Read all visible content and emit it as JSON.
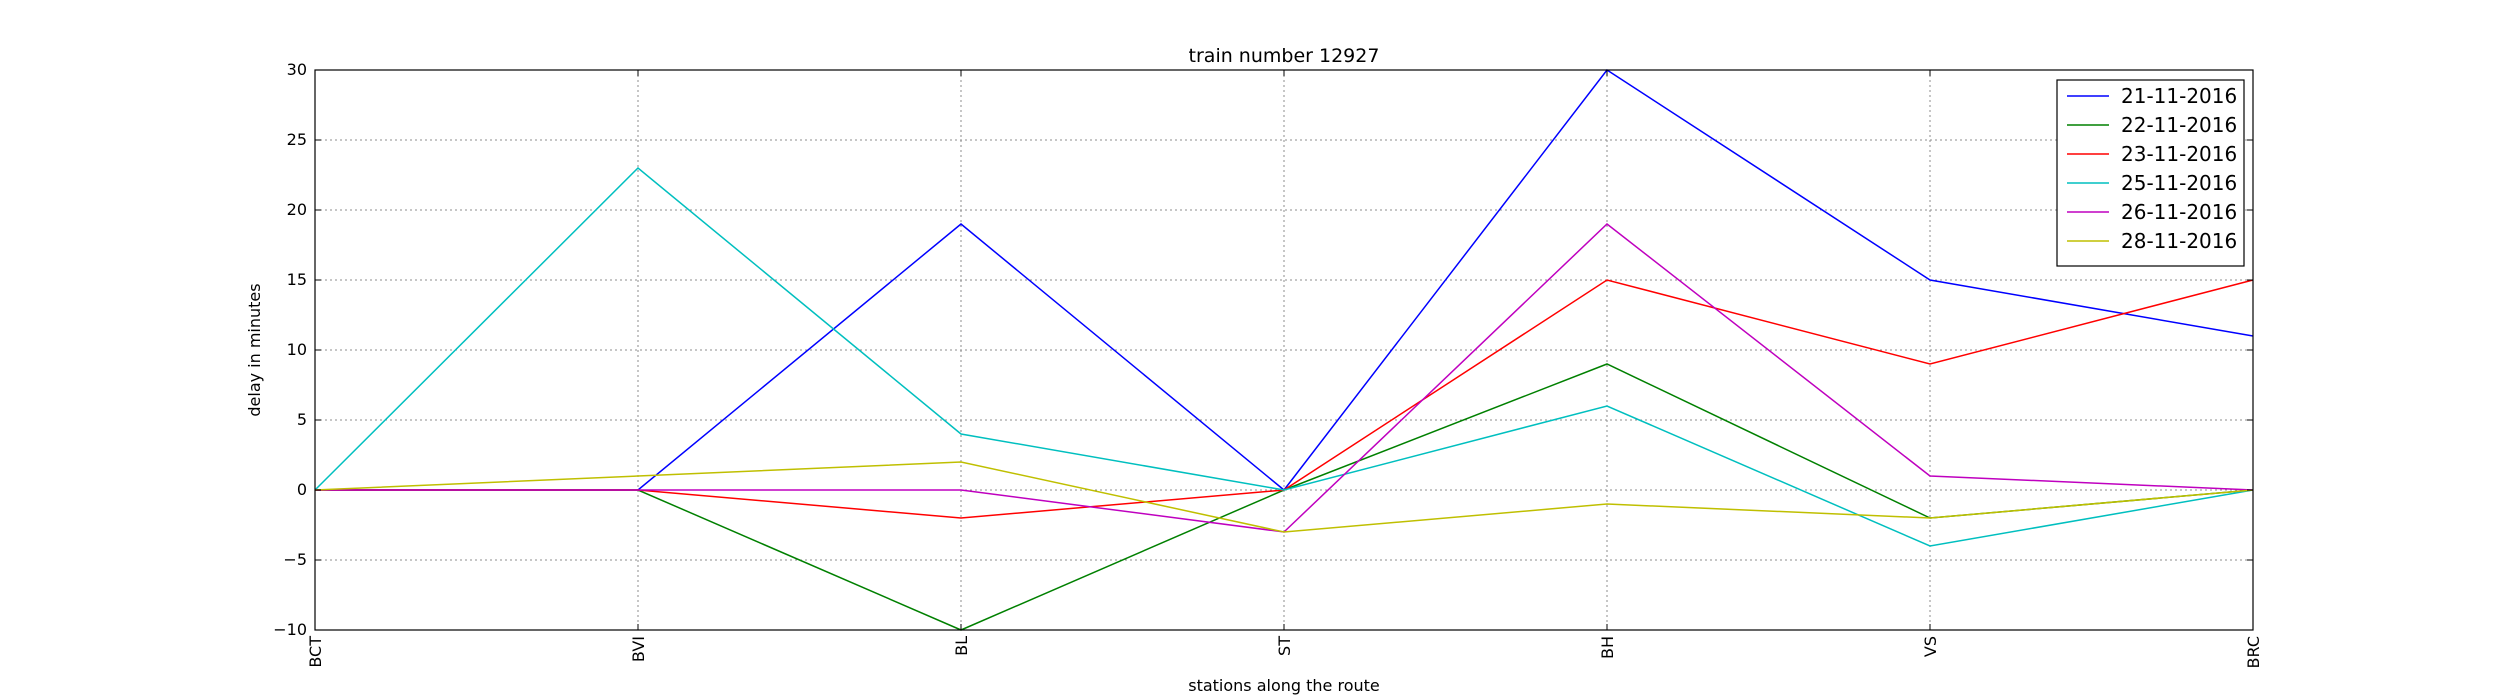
{
  "chart_data": {
    "type": "line",
    "title": "train number 12927",
    "xlabel": "stations along the route",
    "ylabel": "delay in minutes",
    "categories": [
      "BCT",
      "BVI",
      "BL",
      "ST",
      "BH",
      "VS",
      "BRC"
    ],
    "ylim": [
      -10,
      30
    ],
    "yticks": [
      -10,
      -5,
      0,
      5,
      10,
      15,
      20,
      25,
      30
    ],
    "grid": true,
    "legend_position": "top-right",
    "series": [
      {
        "name": "21-11-2016",
        "color": "#0000ff",
        "values": [
          0,
          0,
          19,
          0,
          30,
          15,
          11
        ]
      },
      {
        "name": "22-11-2016",
        "color": "#008000",
        "values": [
          0,
          0,
          -10,
          0,
          9,
          -2,
          0
        ]
      },
      {
        "name": "23-11-2016",
        "color": "#ff0000",
        "values": [
          0,
          0,
          -2,
          0,
          15,
          9,
          15
        ]
      },
      {
        "name": "25-11-2016",
        "color": "#00bfbf",
        "values": [
          0,
          23,
          4,
          0,
          6,
          -4,
          0
        ]
      },
      {
        "name": "26-11-2016",
        "color": "#bf00bf",
        "values": [
          0,
          0,
          0,
          -3,
          19,
          1,
          0
        ]
      },
      {
        "name": "28-11-2016",
        "color": "#bfbf00",
        "values": [
          0,
          1,
          2,
          -3,
          -1,
          -2,
          0
        ]
      }
    ]
  }
}
